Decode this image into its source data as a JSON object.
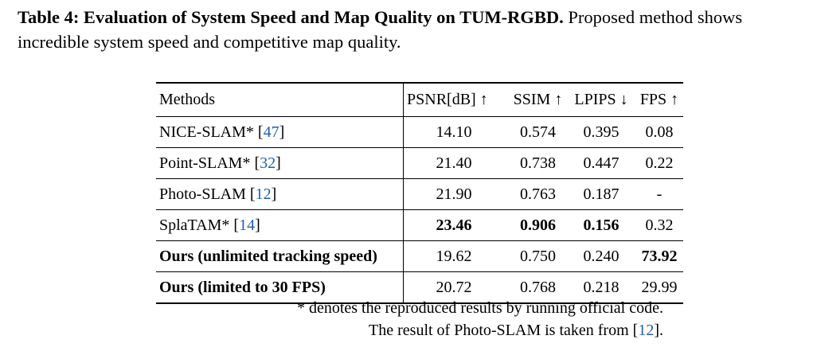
{
  "caption": {
    "label": "Table 4: Evaluation of System Speed and Map Quality on TUM-RGBD.",
    "text": " Proposed method shows incredible system speed and competitive map quality."
  },
  "table": {
    "headers": {
      "methods": "Methods",
      "psnr": "PSNR[dB] ↑",
      "ssim": "SSIM ↑",
      "lpips": "LPIPS ↓",
      "fps": "FPS ↑"
    },
    "rows": [
      {
        "method": "NICE-SLAM* ",
        "cite": "47",
        "psnr": "14.10",
        "ssim": "0.574",
        "lpips": "0.395",
        "fps": "0.08"
      },
      {
        "method": "Point-SLAM* ",
        "cite": "32",
        "psnr": "21.40",
        "ssim": "0.738",
        "lpips": "0.447",
        "fps": "0.22"
      },
      {
        "method": "Photo-SLAM ",
        "cite": "12",
        "psnr": "21.90",
        "ssim": "0.763",
        "lpips": "0.187",
        "fps": "-"
      },
      {
        "method": "SplaTAM* ",
        "cite": "14",
        "psnr": "23.46",
        "ssim": "0.906",
        "lpips": "0.156",
        "fps": "0.32"
      },
      {
        "method": "Ours (unlimited tracking speed)",
        "psnr": "19.62",
        "ssim": "0.750",
        "lpips": "0.240",
        "fps": "73.92"
      },
      {
        "method": "Ours (limited to 30 FPS)",
        "psnr": "20.72",
        "ssim": "0.768",
        "lpips": "0.218",
        "fps": "29.99"
      }
    ]
  },
  "notes": {
    "line1": "* denotes the reproduced results by running official code.",
    "line2_text": "The result of Photo-SLAM is taken from ",
    "line2_cite": "12",
    "line2_end": "."
  },
  "colors": {
    "citation": "#1f5fb4"
  }
}
